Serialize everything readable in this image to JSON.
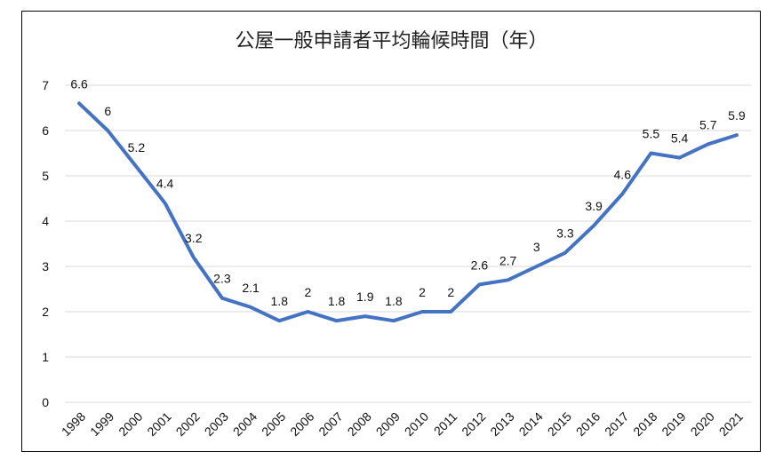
{
  "chart_data": {
    "type": "line",
    "title": "公屋一般申請者平均輪候時間（年）",
    "xlabel": "",
    "ylabel": "",
    "ylim": [
      0,
      7
    ],
    "yticks": [
      "0",
      "1",
      "2",
      "3",
      "4",
      "5",
      "6",
      "7"
    ],
    "grid": true,
    "legend": "none",
    "categories": [
      "1998",
      "1999",
      "2000",
      "2001",
      "2002",
      "2003",
      "2004",
      "2005",
      "2006",
      "2007",
      "2008",
      "2009",
      "2010",
      "2011",
      "2012",
      "2013",
      "2014",
      "2015",
      "2016",
      "2017",
      "2018",
      "2019",
      "2020",
      "2021"
    ],
    "series": [
      {
        "values": [
          6.6,
          6,
          5.2,
          4.4,
          3.2,
          2.3,
          2.1,
          1.8,
          2,
          1.8,
          1.9,
          1.8,
          2,
          2,
          2.6,
          2.7,
          3,
          3.3,
          3.9,
          4.6,
          5.5,
          5.4,
          5.7,
          5.9
        ],
        "labels": [
          "6.6",
          "6",
          "5.2",
          "4.4",
          "3.2",
          "2.3",
          "2.1",
          "1.8",
          "2",
          "1.8",
          "1.9",
          "1.8",
          "2",
          "2",
          "2.6",
          "2.7",
          "3",
          "3.3",
          "3.9",
          "4.6",
          "5.5",
          "5.4",
          "5.7",
          "5.9"
        ],
        "color": "#4472C4"
      }
    ],
    "gridColor": "#d9d9d9"
  }
}
